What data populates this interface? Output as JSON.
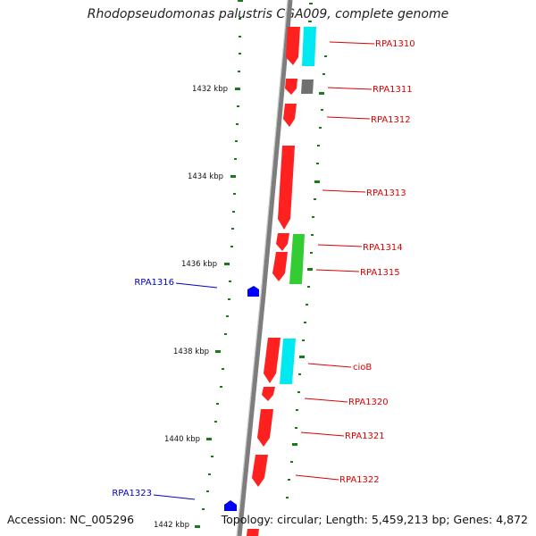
{
  "title": "Rhodopseudomonas palustris CGA009, complete genome",
  "accession": "Accession: NC_005296",
  "topology": "Topology: circular; Length: 5,459,213 bp; Genes: 4,872",
  "colors": {
    "backbone": "#808080",
    "forward_gene": "#ff0000",
    "cog_cyan": "#00e5ee",
    "cog_green": "#33cc33",
    "cog_gray": "#6a6a6a",
    "tick": "#1a7a1a",
    "label_red": "#dd0000",
    "label_blue": "#0000cc",
    "marker_blue": "#0000ff"
  },
  "scale_labels": [
    "1432 kbp",
    "1434 kbp",
    "1436 kbp",
    "1438 kbp",
    "1440 kbp",
    "1442 kbp"
  ],
  "gene_labels": [
    {
      "text": "RPA1310",
      "side": "right"
    },
    {
      "text": "RPA1311",
      "side": "right"
    },
    {
      "text": "RPA1312",
      "side": "right"
    },
    {
      "text": "RPA1313",
      "side": "right"
    },
    {
      "text": "RPA1314",
      "side": "right"
    },
    {
      "text": "RPA1315",
      "side": "right"
    },
    {
      "text": "cioB",
      "side": "right"
    },
    {
      "text": "RPA1320",
      "side": "right"
    },
    {
      "text": "RPA1321",
      "side": "right"
    },
    {
      "text": "RPA1322",
      "side": "right"
    },
    {
      "text": "RPA1316",
      "side": "left"
    },
    {
      "text": "RPA1323",
      "side": "left"
    }
  ]
}
